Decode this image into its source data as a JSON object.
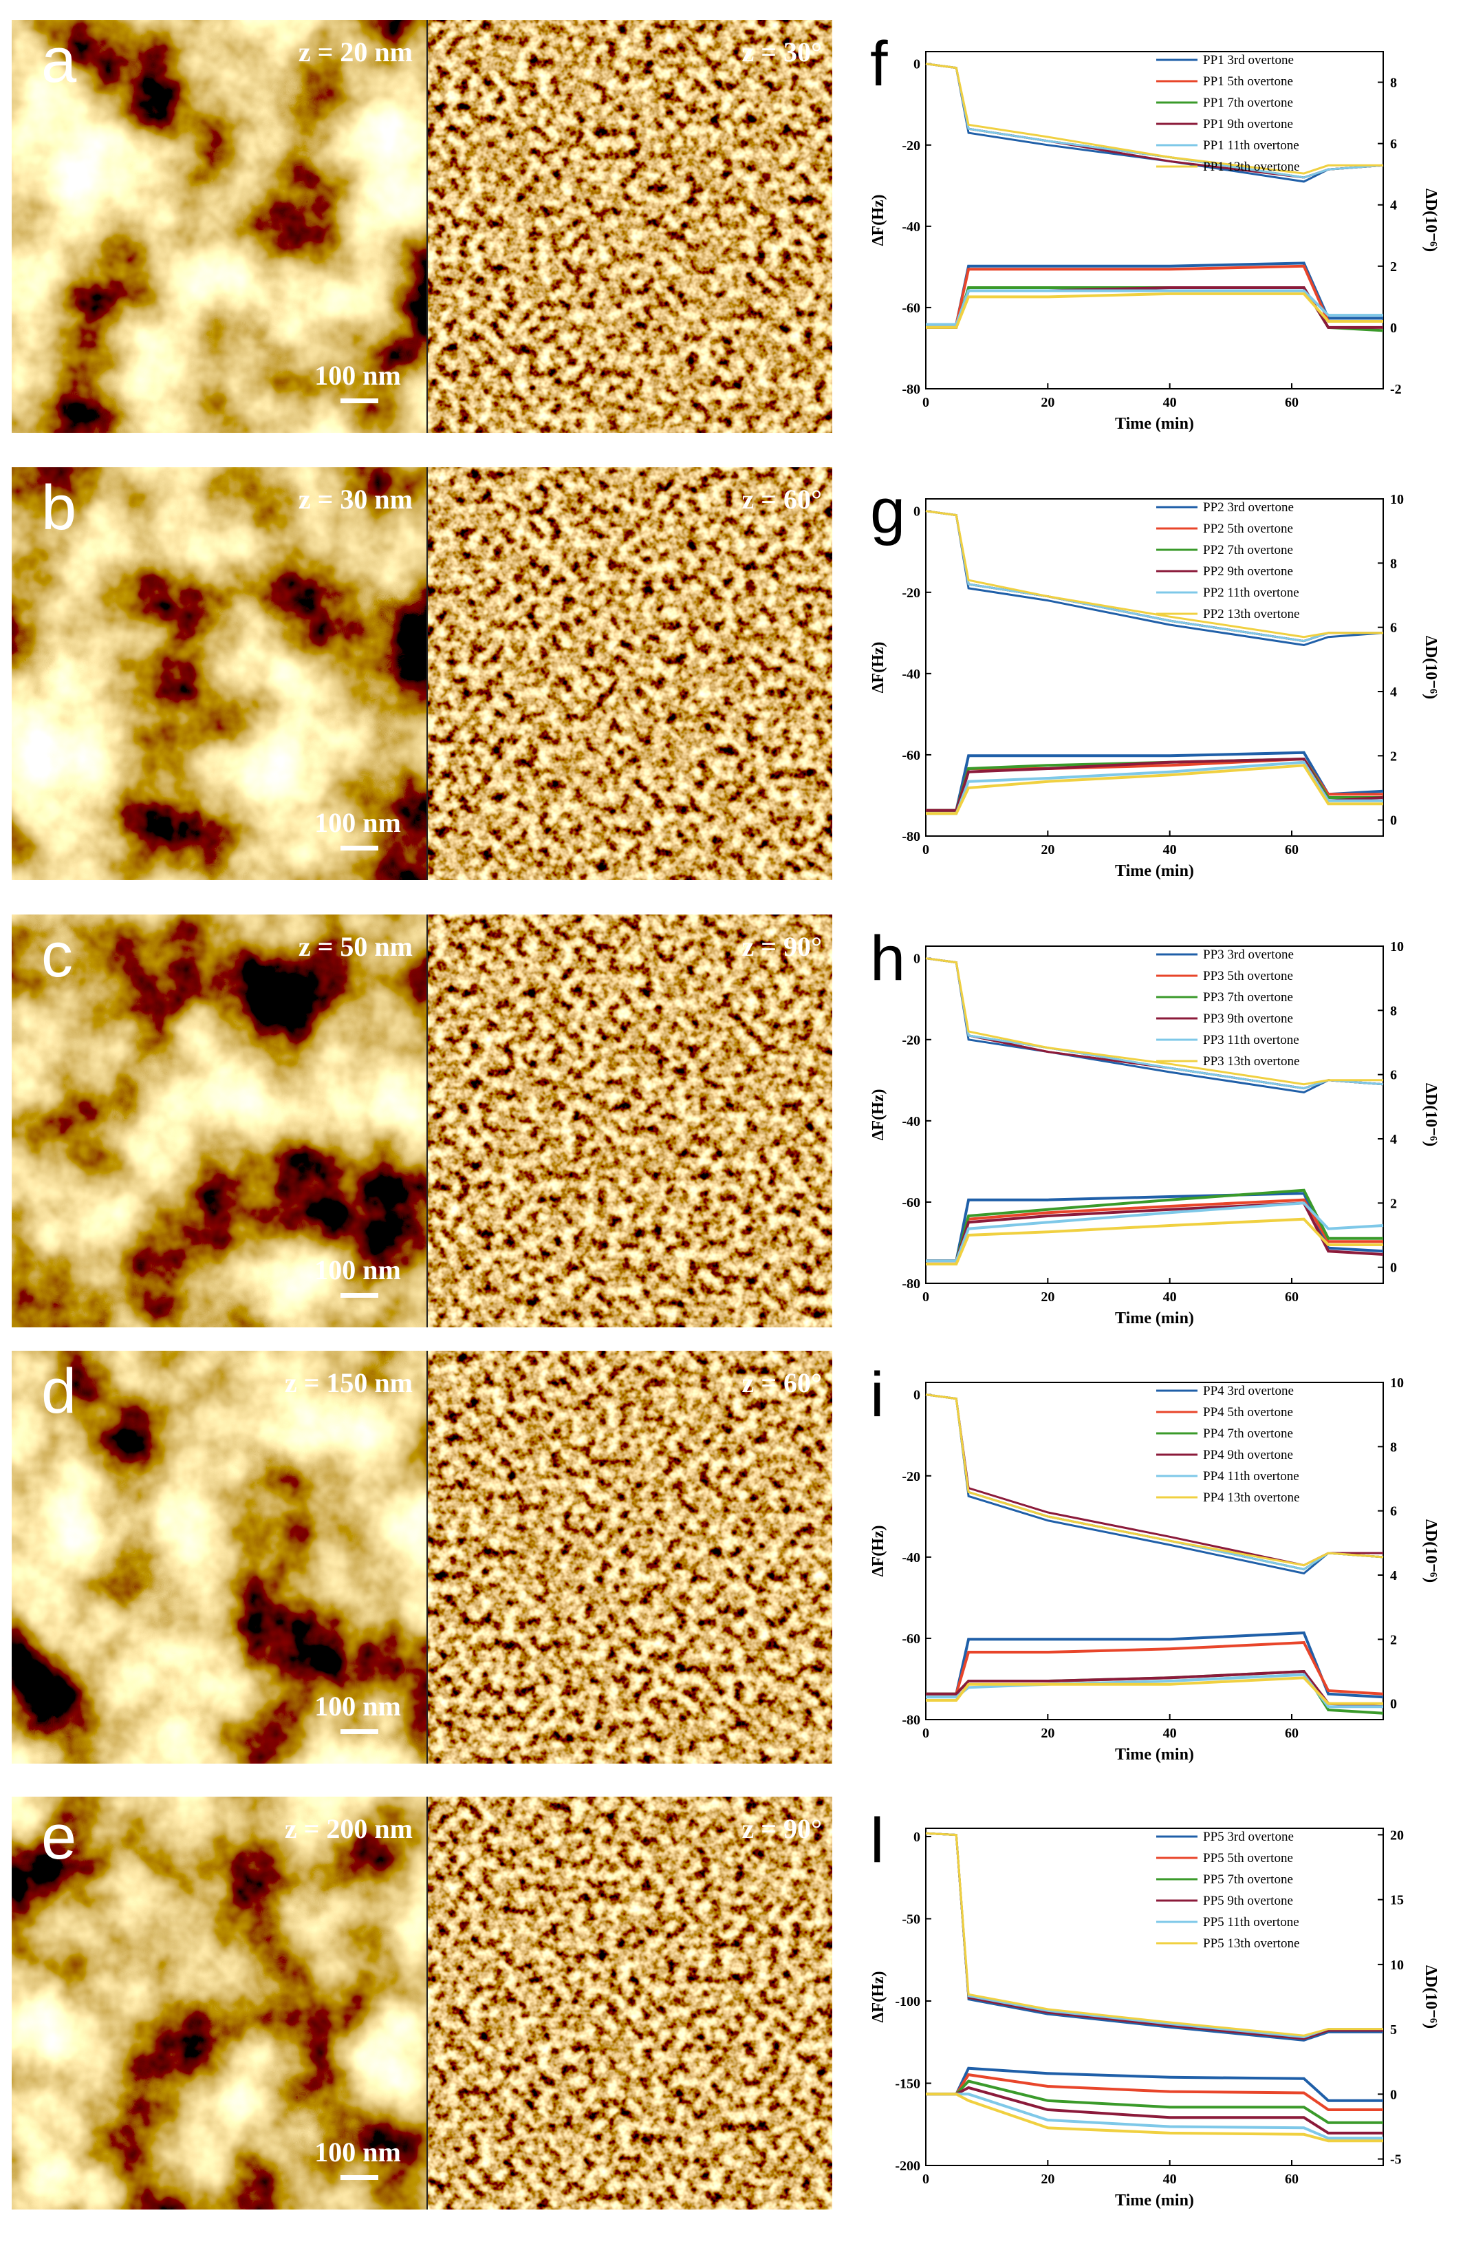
{
  "afm_panels": [
    {
      "label": "a",
      "height_scale": "z = 20 nm",
      "phase_scale": "z = 30°",
      "scale_bar": "100 nm"
    },
    {
      "label": "b",
      "height_scale": "z = 30 nm",
      "phase_scale": "z = 60°",
      "scale_bar": "100 nm"
    },
    {
      "label": "c",
      "height_scale": "z = 50 nm",
      "phase_scale": "z = 90°",
      "scale_bar": "100 nm"
    },
    {
      "label": "d",
      "height_scale": "z = 150 nm",
      "phase_scale": "z = 60°",
      "scale_bar": "100 nm"
    },
    {
      "label": "e",
      "height_scale": "z = 200 nm",
      "phase_scale": "z = 90°",
      "scale_bar": "100 nm"
    }
  ],
  "chart_data": [
    {
      "type": "line",
      "panel_label": "f",
      "xlabel": "Time (min)",
      "ylabel": "ΔF(Hz)",
      "y2label": "ΔD(10⁻⁶)",
      "x": [
        0,
        5,
        7,
        20,
        40,
        62,
        66,
        75
      ],
      "xlim": [
        0,
        75
      ],
      "xticks": [
        0,
        20,
        40,
        60
      ],
      "ylim": [
        -80,
        3
      ],
      "yticks": [
        0,
        -20,
        -40,
        -60,
        -80
      ],
      "y2lim": [
        -2,
        9
      ],
      "y2ticks": [
        -2,
        0,
        2,
        4,
        6,
        8
      ],
      "series": [
        {
          "name": "PP1 3rd overtone",
          "color": "#1f5fa8",
          "values": [
            0,
            -1,
            -17,
            -20,
            -24,
            -29,
            -26,
            -25
          ],
          "d_values": [
            0.1,
            0.1,
            2.0,
            2.0,
            2.0,
            2.1,
            0.3,
            0.3
          ]
        },
        {
          "name": "PP1 5th overtone",
          "color": "#e8452a",
          "values": [
            0,
            -1,
            -16,
            -19,
            -23,
            -28,
            -26,
            -25
          ],
          "d_values": [
            0.1,
            0.1,
            1.9,
            1.9,
            1.9,
            2.0,
            0.2,
            0.2
          ]
        },
        {
          "name": "PP1 7th overtone",
          "color": "#3a9a2a",
          "values": [
            0,
            -1,
            -16,
            -19,
            -23,
            -28,
            -26,
            -25
          ],
          "d_values": [
            0,
            0,
            1.3,
            1.3,
            1.3,
            1.3,
            0,
            -0.1
          ]
        },
        {
          "name": "PP1 9th overtone",
          "color": "#8b1a3a",
          "values": [
            0,
            -1,
            -16,
            -19,
            -24,
            -28,
            -26,
            -25
          ],
          "d_values": [
            0,
            0,
            1.2,
            1.2,
            1.3,
            1.3,
            0,
            0
          ]
        },
        {
          "name": "PP1 11th overtone",
          "color": "#7ec8e8",
          "values": [
            0,
            -1,
            -16,
            -19,
            -23,
            -28,
            -26,
            -25
          ],
          "d_values": [
            0.1,
            0.1,
            1.2,
            1.2,
            1.2,
            1.2,
            0.4,
            0.4
          ]
        },
        {
          "name": "PP1 13th overtone",
          "color": "#f0d040",
          "values": [
            0,
            -1,
            -15,
            -18,
            -23,
            -27,
            -25,
            -25
          ],
          "d_values": [
            0,
            0,
            1.0,
            1.0,
            1.1,
            1.1,
            0.2,
            0.2
          ]
        }
      ]
    },
    {
      "type": "line",
      "panel_label": "g",
      "xlabel": "Time (min)",
      "ylabel": "ΔF(Hz)",
      "y2label": "ΔD(10⁻⁶)",
      "x": [
        0,
        5,
        7,
        20,
        40,
        62,
        66,
        75
      ],
      "xlim": [
        0,
        75
      ],
      "xticks": [
        0,
        20,
        40,
        60
      ],
      "ylim": [
        -80,
        3
      ],
      "yticks": [
        0,
        -20,
        -40,
        -60,
        -80
      ],
      "y2lim": [
        -0.5,
        10
      ],
      "y2ticks": [
        0,
        2,
        4,
        6,
        8,
        10
      ],
      "series": [
        {
          "name": "PP2 3rd overtone",
          "color": "#1f5fa8",
          "values": [
            0,
            -1,
            -19,
            -22,
            -28,
            -33,
            -31,
            -30
          ],
          "d_values": [
            0.3,
            0.3,
            2.0,
            2.0,
            2.0,
            2.1,
            0.8,
            0.9
          ]
        },
        {
          "name": "PP2 5th overtone",
          "color": "#e8452a",
          "values": [
            0,
            -1,
            -18,
            -21,
            -27,
            -32,
            -30,
            -30
          ],
          "d_values": [
            0.3,
            0.3,
            1.6,
            1.6,
            1.7,
            1.9,
            0.8,
            0.8
          ]
        },
        {
          "name": "PP2 7th overtone",
          "color": "#3a9a2a",
          "values": [
            0,
            -1,
            -18,
            -21,
            -27,
            -32,
            -30,
            -30
          ],
          "d_values": [
            0.3,
            0.3,
            1.6,
            1.7,
            1.8,
            1.9,
            0.7,
            0.7
          ]
        },
        {
          "name": "PP2 9th overtone",
          "color": "#8b1a3a",
          "values": [
            0,
            -1,
            -18,
            -21,
            -27,
            -32,
            -30,
            -30
          ],
          "d_values": [
            0.3,
            0.3,
            1.5,
            1.6,
            1.8,
            1.9,
            0.6,
            0.7
          ]
        },
        {
          "name": "PP2 11th overtone",
          "color": "#7ec8e8",
          "values": [
            0,
            -1,
            -18,
            -21,
            -27,
            -32,
            -30,
            -30
          ],
          "d_values": [
            0.2,
            0.2,
            1.2,
            1.3,
            1.5,
            1.8,
            0.6,
            0.6
          ]
        },
        {
          "name": "PP2 13th overtone",
          "color": "#f0d040",
          "values": [
            0,
            -1,
            -17,
            -21,
            -26,
            -31,
            -30,
            -30
          ],
          "d_values": [
            0.2,
            0.2,
            1.0,
            1.2,
            1.4,
            1.7,
            0.5,
            0.5
          ]
        }
      ]
    },
    {
      "type": "line",
      "panel_label": "h",
      "xlabel": "Time (min)",
      "ylabel": "ΔF(Hz)",
      "y2label": "ΔD(10⁻⁶)",
      "x": [
        0,
        5,
        7,
        20,
        40,
        62,
        66,
        75
      ],
      "xlim": [
        0,
        75
      ],
      "xticks": [
        0,
        20,
        40,
        60
      ],
      "ylim": [
        -80,
        3
      ],
      "yticks": [
        0,
        -20,
        -40,
        -60,
        -80
      ],
      "y2lim": [
        -0.5,
        10
      ],
      "y2ticks": [
        0,
        2,
        4,
        6,
        8,
        10
      ],
      "series": [
        {
          "name": "PP3 3rd overtone",
          "color": "#1f5fa8",
          "values": [
            0,
            -1,
            -20,
            -23,
            -28,
            -33,
            -30,
            -31
          ],
          "d_values": [
            0.2,
            0.2,
            2.1,
            2.1,
            2.2,
            2.3,
            0.6,
            0.5
          ]
        },
        {
          "name": "PP3 5th overtone",
          "color": "#e8452a",
          "values": [
            0,
            -1,
            -19,
            -23,
            -27,
            -32,
            -30,
            -31
          ],
          "d_values": [
            0.2,
            0.2,
            1.5,
            1.7,
            1.9,
            2.1,
            0.8,
            0.8
          ]
        },
        {
          "name": "PP3 7th overtone",
          "color": "#3a9a2a",
          "values": [
            0,
            -1,
            -19,
            -22,
            -27,
            -32,
            -30,
            -31
          ],
          "d_values": [
            0.2,
            0.2,
            1.6,
            1.8,
            2.1,
            2.4,
            0.9,
            0.9
          ]
        },
        {
          "name": "PP3 9th overtone",
          "color": "#8b1a3a",
          "values": [
            0,
            -1,
            -19,
            -23,
            -27,
            -32,
            -30,
            -31
          ],
          "d_values": [
            0.2,
            0.2,
            1.4,
            1.6,
            1.8,
            2.0,
            0.5,
            0.4
          ]
        },
        {
          "name": "PP3 11th overtone",
          "color": "#7ec8e8",
          "values": [
            0,
            -1,
            -19,
            -22,
            -27,
            -32,
            -30,
            -31
          ],
          "d_values": [
            0.2,
            0.2,
            1.2,
            1.4,
            1.7,
            2.0,
            1.2,
            1.3
          ]
        },
        {
          "name": "PP3 13th overtone",
          "color": "#f0d040",
          "values": [
            0,
            -1,
            -18,
            -22,
            -26,
            -31,
            -30,
            -30
          ],
          "d_values": [
            0.1,
            0.1,
            1.0,
            1.1,
            1.3,
            1.5,
            0.7,
            0.7
          ]
        }
      ]
    },
    {
      "type": "line",
      "panel_label": "i",
      "xlabel": "Time (min)",
      "ylabel": "ΔF(Hz)",
      "y2label": "ΔD(10⁻⁶)",
      "x": [
        0,
        5,
        7,
        20,
        40,
        62,
        66,
        75
      ],
      "xlim": [
        0,
        75
      ],
      "xticks": [
        0,
        20,
        40,
        60
      ],
      "ylim": [
        -80,
        3
      ],
      "yticks": [
        0,
        -20,
        -40,
        -60,
        -80
      ],
      "y2lim": [
        -0.5,
        10
      ],
      "y2ticks": [
        0,
        2,
        4,
        6,
        8,
        10
      ],
      "series": [
        {
          "name": "PP4 3rd overtone",
          "color": "#1f5fa8",
          "values": [
            0,
            -1,
            -25,
            -31,
            -37,
            -44,
            -39,
            -40
          ],
          "d_values": [
            0.3,
            0.3,
            2.0,
            2.0,
            2.0,
            2.2,
            0.3,
            0.2
          ]
        },
        {
          "name": "PP4 5th overtone",
          "color": "#e8452a",
          "values": [
            0,
            -1,
            -24,
            -30,
            -36,
            -43,
            -39,
            -40
          ],
          "d_values": [
            0.3,
            0.3,
            1.6,
            1.6,
            1.7,
            1.9,
            0.4,
            0.3
          ]
        },
        {
          "name": "PP4 7th overtone",
          "color": "#3a9a2a",
          "values": [
            0,
            -1,
            -24,
            -30,
            -36,
            -43,
            -39,
            -40
          ],
          "d_values": [
            0.3,
            0.3,
            0.7,
            0.7,
            0.8,
            1.0,
            -0.2,
            -0.3
          ]
        },
        {
          "name": "PP4 9th overtone",
          "color": "#8b1a3a",
          "values": [
            0,
            -1,
            -23,
            -29,
            -35,
            -42,
            -39,
            -39
          ],
          "d_values": [
            0.3,
            0.3,
            0.7,
            0.7,
            0.8,
            1.0,
            0,
            -0.1
          ]
        },
        {
          "name": "PP4 11th overtone",
          "color": "#7ec8e8",
          "values": [
            0,
            -1,
            -24,
            -30,
            -36,
            -43,
            -39,
            -40
          ],
          "d_values": [
            0.2,
            0.2,
            0.5,
            0.6,
            0.7,
            0.9,
            -0.1,
            -0.1
          ]
        },
        {
          "name": "PP4 13th overtone",
          "color": "#f0d040",
          "values": [
            0,
            -1,
            -24,
            -30,
            -36,
            -42,
            -39,
            -40
          ],
          "d_values": [
            0.1,
            0.1,
            0.6,
            0.6,
            0.6,
            0.8,
            0,
            0
          ]
        }
      ]
    },
    {
      "type": "line",
      "panel_label": "l",
      "xlabel": "Time (min)",
      "ylabel": "ΔF(Hz)",
      "y2label": "ΔD(10⁻⁶)",
      "x": [
        0,
        5,
        7,
        20,
        40,
        62,
        66,
        75
      ],
      "xlim": [
        0,
        75
      ],
      "xticks": [
        0,
        20,
        40,
        60
      ],
      "ylim": [
        -200,
        5
      ],
      "yticks": [
        0,
        -50,
        -100,
        -150,
        -200
      ],
      "y2lim": [
        -5.5,
        20.5
      ],
      "y2ticks": [
        -5,
        0,
        5,
        10,
        15,
        20
      ],
      "series": [
        {
          "name": "PP5 3rd overtone",
          "color": "#1f5fa8",
          "values": [
            2,
            1,
            -99,
            -108,
            -116,
            -124,
            -119,
            -119
          ],
          "d_values": [
            0,
            0,
            2,
            1.6,
            1.3,
            1.2,
            -0.5,
            -0.5
          ]
        },
        {
          "name": "PP5 5th overtone",
          "color": "#e8452a",
          "values": [
            2,
            1,
            -98,
            -107,
            -115,
            -123,
            -118,
            -118
          ],
          "d_values": [
            0,
            0,
            1.5,
            0.6,
            0.2,
            0.1,
            -1.2,
            -1.2
          ]
        },
        {
          "name": "PP5 7th overtone",
          "color": "#3a9a2a",
          "values": [
            2,
            1,
            -98,
            -107,
            -115,
            -123,
            -118,
            -118
          ],
          "d_values": [
            0,
            0,
            1,
            -0.5,
            -1,
            -1,
            -2.2,
            -2.2
          ]
        },
        {
          "name": "PP5 9th overtone",
          "color": "#8b1a3a",
          "values": [
            2,
            1,
            -98,
            -107,
            -115,
            -123,
            -118,
            -118
          ],
          "d_values": [
            0,
            0,
            0.5,
            -1.2,
            -1.8,
            -1.8,
            -3,
            -3
          ]
        },
        {
          "name": "PP5 11th overtone",
          "color": "#7ec8e8",
          "values": [
            2,
            1,
            -97,
            -106,
            -114,
            -122,
            -117,
            -117
          ],
          "d_values": [
            0,
            0,
            0,
            -2,
            -2.5,
            -2.6,
            -3.4,
            -3.4
          ]
        },
        {
          "name": "PP5 13th overtone",
          "color": "#f0d040",
          "values": [
            2,
            1,
            -96,
            -105,
            -113,
            -121,
            -117,
            -117
          ],
          "d_values": [
            0,
            0,
            -0.5,
            -2.6,
            -3.0,
            -3.1,
            -3.6,
            -3.6
          ]
        }
      ]
    }
  ]
}
